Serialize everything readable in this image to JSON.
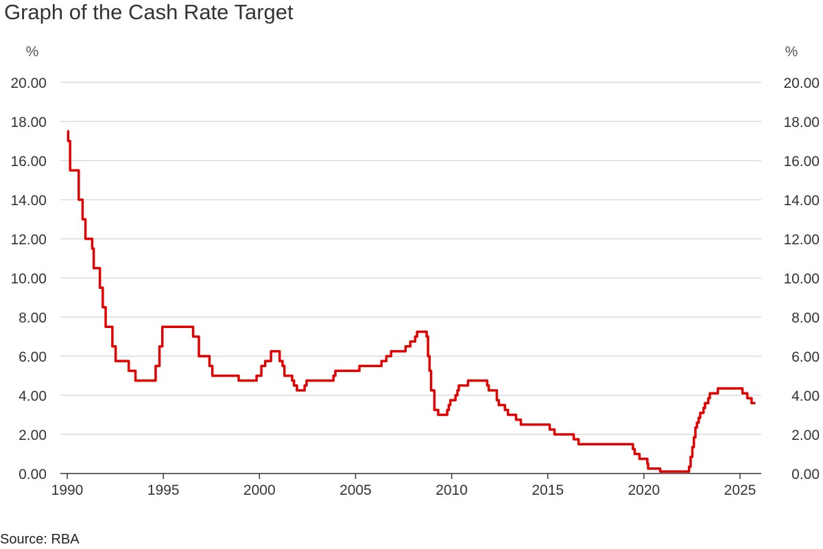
{
  "chart_data": {
    "type": "line",
    "title": "Graph of the Cash Rate Target",
    "ylabel_left": "%",
    "ylabel_right": "%",
    "source": "Source: RBA",
    "xlim": [
      1990,
      2025.9
    ],
    "ylim": [
      0,
      20
    ],
    "grid": true,
    "x_ticks": [
      1990,
      1995,
      2000,
      2005,
      2010,
      2015,
      2020,
      2025
    ],
    "x_tick_labels": [
      "1990",
      "1995",
      "2000",
      "2005",
      "2010",
      "2015",
      "2020",
      "2025"
    ],
    "y_ticks": [
      0,
      2,
      4,
      6,
      8,
      10,
      12,
      14,
      16,
      18,
      20
    ],
    "y_tick_labels": [
      "0.00",
      "2.00",
      "4.00",
      "6.00",
      "8.00",
      "10.00",
      "12.00",
      "14.00",
      "16.00",
      "18.00",
      "20.00"
    ],
    "line_color": "#e00000",
    "series": [
      {
        "name": "Cash Rate Target",
        "step": true,
        "points": [
          [
            1990.0,
            17.5
          ],
          [
            1990.05,
            17.0
          ],
          [
            1990.15,
            15.5
          ],
          [
            1990.6,
            14.0
          ],
          [
            1990.8,
            13.0
          ],
          [
            1990.95,
            12.0
          ],
          [
            1991.3,
            11.5
          ],
          [
            1991.38,
            10.5
          ],
          [
            1991.7,
            9.5
          ],
          [
            1991.85,
            8.5
          ],
          [
            1992.0,
            7.5
          ],
          [
            1992.35,
            6.5
          ],
          [
            1992.52,
            5.75
          ],
          [
            1993.2,
            5.25
          ],
          [
            1993.55,
            4.75
          ],
          [
            1994.6,
            5.5
          ],
          [
            1994.8,
            6.5
          ],
          [
            1994.95,
            7.5
          ],
          [
            1996.55,
            7.0
          ],
          [
            1996.85,
            6.0
          ],
          [
            1997.4,
            5.5
          ],
          [
            1997.55,
            5.0
          ],
          [
            1998.92,
            4.75
          ],
          [
            1999.85,
            5.0
          ],
          [
            2000.1,
            5.5
          ],
          [
            2000.3,
            5.75
          ],
          [
            2000.6,
            6.25
          ],
          [
            2001.05,
            5.75
          ],
          [
            2001.2,
            5.5
          ],
          [
            2001.3,
            5.0
          ],
          [
            2001.7,
            4.75
          ],
          [
            2001.8,
            4.5
          ],
          [
            2001.95,
            4.25
          ],
          [
            2002.35,
            4.5
          ],
          [
            2002.45,
            4.75
          ],
          [
            2003.85,
            5.0
          ],
          [
            2003.95,
            5.25
          ],
          [
            2005.2,
            5.5
          ],
          [
            2006.35,
            5.75
          ],
          [
            2006.6,
            6.0
          ],
          [
            2006.85,
            6.25
          ],
          [
            2007.6,
            6.5
          ],
          [
            2007.85,
            6.75
          ],
          [
            2008.1,
            7.0
          ],
          [
            2008.2,
            7.25
          ],
          [
            2008.7,
            7.0
          ],
          [
            2008.77,
            6.0
          ],
          [
            2008.85,
            5.25
          ],
          [
            2008.93,
            4.25
          ],
          [
            2009.1,
            3.25
          ],
          [
            2009.3,
            3.0
          ],
          [
            2009.77,
            3.25
          ],
          [
            2009.85,
            3.5
          ],
          [
            2009.93,
            3.75
          ],
          [
            2010.2,
            4.0
          ],
          [
            2010.3,
            4.25
          ],
          [
            2010.37,
            4.5
          ],
          [
            2010.85,
            4.75
          ],
          [
            2011.85,
            4.5
          ],
          [
            2011.93,
            4.25
          ],
          [
            2012.35,
            3.75
          ],
          [
            2012.45,
            3.5
          ],
          [
            2012.77,
            3.25
          ],
          [
            2012.93,
            3.0
          ],
          [
            2013.35,
            2.75
          ],
          [
            2013.6,
            2.5
          ],
          [
            2015.1,
            2.25
          ],
          [
            2015.35,
            2.0
          ],
          [
            2016.35,
            1.75
          ],
          [
            2016.6,
            1.5
          ],
          [
            2019.43,
            1.25
          ],
          [
            2019.52,
            1.0
          ],
          [
            2019.77,
            0.75
          ],
          [
            2020.18,
            0.5
          ],
          [
            2020.22,
            0.25
          ],
          [
            2020.85,
            0.1
          ],
          [
            2022.35,
            0.35
          ],
          [
            2022.43,
            0.85
          ],
          [
            2022.52,
            1.35
          ],
          [
            2022.6,
            1.85
          ],
          [
            2022.68,
            2.35
          ],
          [
            2022.76,
            2.6
          ],
          [
            2022.85,
            2.85
          ],
          [
            2022.93,
            3.1
          ],
          [
            2023.1,
            3.35
          ],
          [
            2023.18,
            3.6
          ],
          [
            2023.35,
            3.85
          ],
          [
            2023.43,
            4.1
          ],
          [
            2023.85,
            4.35
          ],
          [
            2025.13,
            4.1
          ],
          [
            2025.38,
            3.85
          ],
          [
            2025.6,
            3.6
          ],
          [
            2025.8,
            3.6
          ]
        ]
      }
    ]
  }
}
